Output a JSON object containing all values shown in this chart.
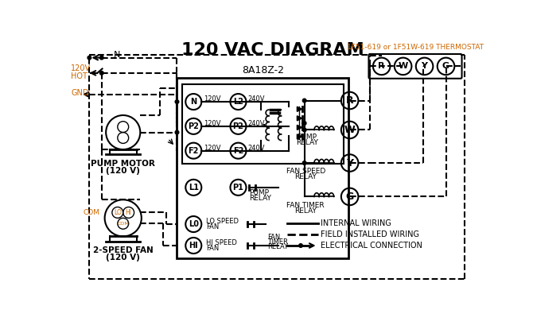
{
  "title": "120 VAC DIAGRAM",
  "title_fontsize": 16,
  "title_fontweight": "bold",
  "bg_color": "#ffffff",
  "line_color": "#000000",
  "orange_color": "#cc6600",
  "thermostat_label": "1F51-619 or 1F51W-619 THERMOSTAT",
  "controller_label": "8A18Z-2",
  "legend_items": [
    {
      "label": "INTERNAL WIRING",
      "style": "solid"
    },
    {
      "label": "FIELD INSTALLED WIRING",
      "style": "dashed"
    },
    {
      "label": "ELECTRICAL CONNECTION",
      "style": "arrow"
    }
  ]
}
